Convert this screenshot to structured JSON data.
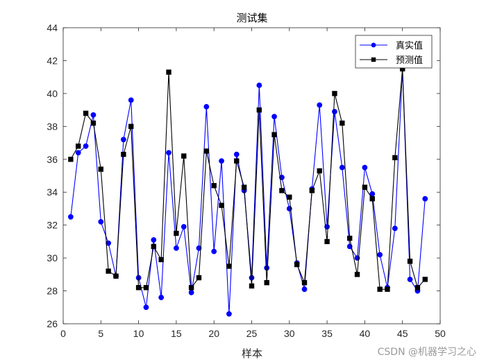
{
  "chart_data": {
    "type": "line",
    "title": "测试集",
    "xlabel": "样本",
    "ylabel": "",
    "xlim": [
      0,
      50
    ],
    "ylim": [
      26,
      44
    ],
    "xticks": [
      0,
      5,
      10,
      15,
      20,
      25,
      30,
      35,
      40,
      45,
      50
    ],
    "yticks": [
      26,
      28,
      30,
      32,
      34,
      36,
      38,
      40,
      42,
      44
    ],
    "grid": false,
    "legend_position": "top-right",
    "x": [
      1,
      2,
      3,
      4,
      5,
      6,
      7,
      8,
      9,
      10,
      11,
      12,
      13,
      14,
      15,
      16,
      17,
      18,
      19,
      20,
      21,
      22,
      23,
      24,
      25,
      26,
      27,
      28,
      29,
      30,
      31,
      32,
      33,
      34,
      35,
      36,
      37,
      38,
      39,
      40,
      41,
      42,
      43,
      44,
      45,
      46,
      47,
      48
    ],
    "series": [
      {
        "name": "真实值",
        "color": "#0000ff",
        "marker": "circle",
        "values": [
          32.5,
          36.4,
          36.8,
          38.7,
          32.2,
          30.9,
          28.9,
          37.2,
          39.6,
          28.8,
          27.0,
          31.1,
          27.6,
          36.4,
          30.6,
          31.9,
          27.9,
          30.6,
          39.2,
          30.4,
          35.9,
          26.6,
          36.3,
          34.1,
          28.8,
          40.5,
          29.4,
          38.6,
          34.9,
          33.0,
          29.7,
          28.1,
          34.2,
          39.3,
          31.9,
          38.9,
          35.5,
          30.7,
          30.0,
          35.5,
          33.9,
          30.2,
          28.2,
          31.8,
          41.5,
          28.7,
          28.0,
          33.6
        ]
      },
      {
        "name": "预测值",
        "color": "#000000",
        "marker": "square",
        "values": [
          36.0,
          36.8,
          38.8,
          38.2,
          35.4,
          29.2,
          28.9,
          36.3,
          38.0,
          28.2,
          28.2,
          30.7,
          29.9,
          41.3,
          31.5,
          36.2,
          28.2,
          28.8,
          36.5,
          34.4,
          33.2,
          29.5,
          35.9,
          34.3,
          28.3,
          39.0,
          28.5,
          37.5,
          34.1,
          33.7,
          29.6,
          28.5,
          34.1,
          35.3,
          31.0,
          40.0,
          38.2,
          31.2,
          29.0,
          34.3,
          33.6,
          28.1,
          28.1,
          36.1,
          41.5,
          29.8,
          28.2,
          28.7
        ]
      }
    ]
  },
  "watermark": "CSDN @机器学习之心"
}
